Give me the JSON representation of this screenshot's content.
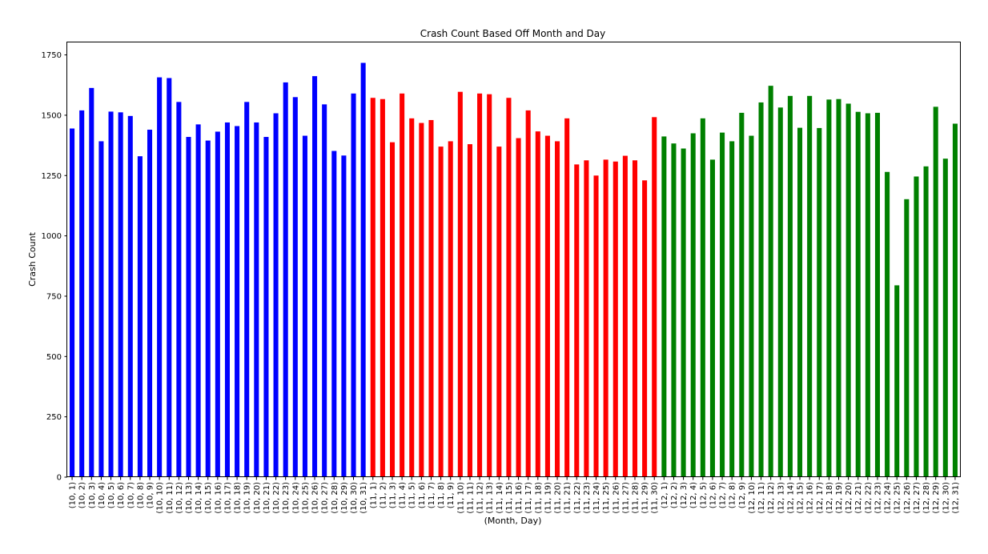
{
  "chart_data": {
    "type": "bar",
    "title": "Crash Count Based Off Month and Day",
    "xlabel": "(Month, Day)",
    "ylabel": "Crash Count",
    "ylim": [
      0,
      1800
    ],
    "yticks": [
      0,
      250,
      500,
      750,
      1000,
      1250,
      1500,
      1750
    ],
    "grid": false,
    "legend": "none",
    "categories": [
      "(10, 1)",
      "(10, 2)",
      "(10, 3)",
      "(10, 4)",
      "(10, 5)",
      "(10, 6)",
      "(10, 7)",
      "(10, 8)",
      "(10, 9)",
      "(10, 10)",
      "(10, 11)",
      "(10, 12)",
      "(10, 13)",
      "(10, 14)",
      "(10, 15)",
      "(10, 16)",
      "(10, 17)",
      "(10, 18)",
      "(10, 19)",
      "(10, 20)",
      "(10, 21)",
      "(10, 22)",
      "(10, 23)",
      "(10, 24)",
      "(10, 25)",
      "(10, 26)",
      "(10, 27)",
      "(10, 28)",
      "(10, 29)",
      "(10, 30)",
      "(10, 31)",
      "(11, 1)",
      "(11, 2)",
      "(11, 3)",
      "(11, 4)",
      "(11, 5)",
      "(11, 6)",
      "(11, 7)",
      "(11, 8)",
      "(11, 9)",
      "(11, 10)",
      "(11, 11)",
      "(11, 12)",
      "(11, 13)",
      "(11, 14)",
      "(11, 15)",
      "(11, 16)",
      "(11, 17)",
      "(11, 18)",
      "(11, 19)",
      "(11, 20)",
      "(11, 21)",
      "(11, 22)",
      "(11, 23)",
      "(11, 24)",
      "(11, 25)",
      "(11, 26)",
      "(11, 27)",
      "(11, 28)",
      "(11, 29)",
      "(11, 30)",
      "(12, 1)",
      "(12, 2)",
      "(12, 3)",
      "(12, 4)",
      "(12, 5)",
      "(12, 6)",
      "(12, 7)",
      "(12, 8)",
      "(12, 9)",
      "(12, 10)",
      "(12, 11)",
      "(12, 12)",
      "(12, 13)",
      "(12, 14)",
      "(12, 15)",
      "(12, 16)",
      "(12, 17)",
      "(12, 18)",
      "(12, 19)",
      "(12, 20)",
      "(12, 21)",
      "(12, 22)",
      "(12, 23)",
      "(12, 24)",
      "(12, 25)",
      "(12, 26)",
      "(12, 27)",
      "(12, 28)",
      "(12, 29)",
      "(12, 30)",
      "(12, 31)"
    ],
    "values": [
      1445,
      1520,
      1613,
      1392,
      1515,
      1512,
      1497,
      1330,
      1440,
      1657,
      1654,
      1555,
      1410,
      1462,
      1395,
      1432,
      1470,
      1455,
      1555,
      1470,
      1410,
      1508,
      1636,
      1575,
      1415,
      1662,
      1545,
      1352,
      1333,
      1590,
      1717,
      1572,
      1567,
      1388,
      1590,
      1487,
      1468,
      1480,
      1370,
      1392,
      1597,
      1380,
      1590,
      1587,
      1370,
      1572,
      1405,
      1520,
      1433,
      1415,
      1392,
      1487,
      1296,
      1313,
      1250,
      1316,
      1308,
      1332,
      1313,
      1230,
      1492,
      1412,
      1383,
      1362,
      1425,
      1487,
      1316,
      1428,
      1392,
      1510,
      1415,
      1553,
      1622,
      1532,
      1580,
      1448,
      1580,
      1447,
      1565,
      1567,
      1548,
      1514,
      1508,
      1510,
      1265,
      795,
      1152,
      1246,
      1288,
      1535,
      1320,
      1465
    ],
    "month_colors": {
      "10": "#0000ff",
      "11": "#ff0000",
      "12": "#008000"
    }
  }
}
